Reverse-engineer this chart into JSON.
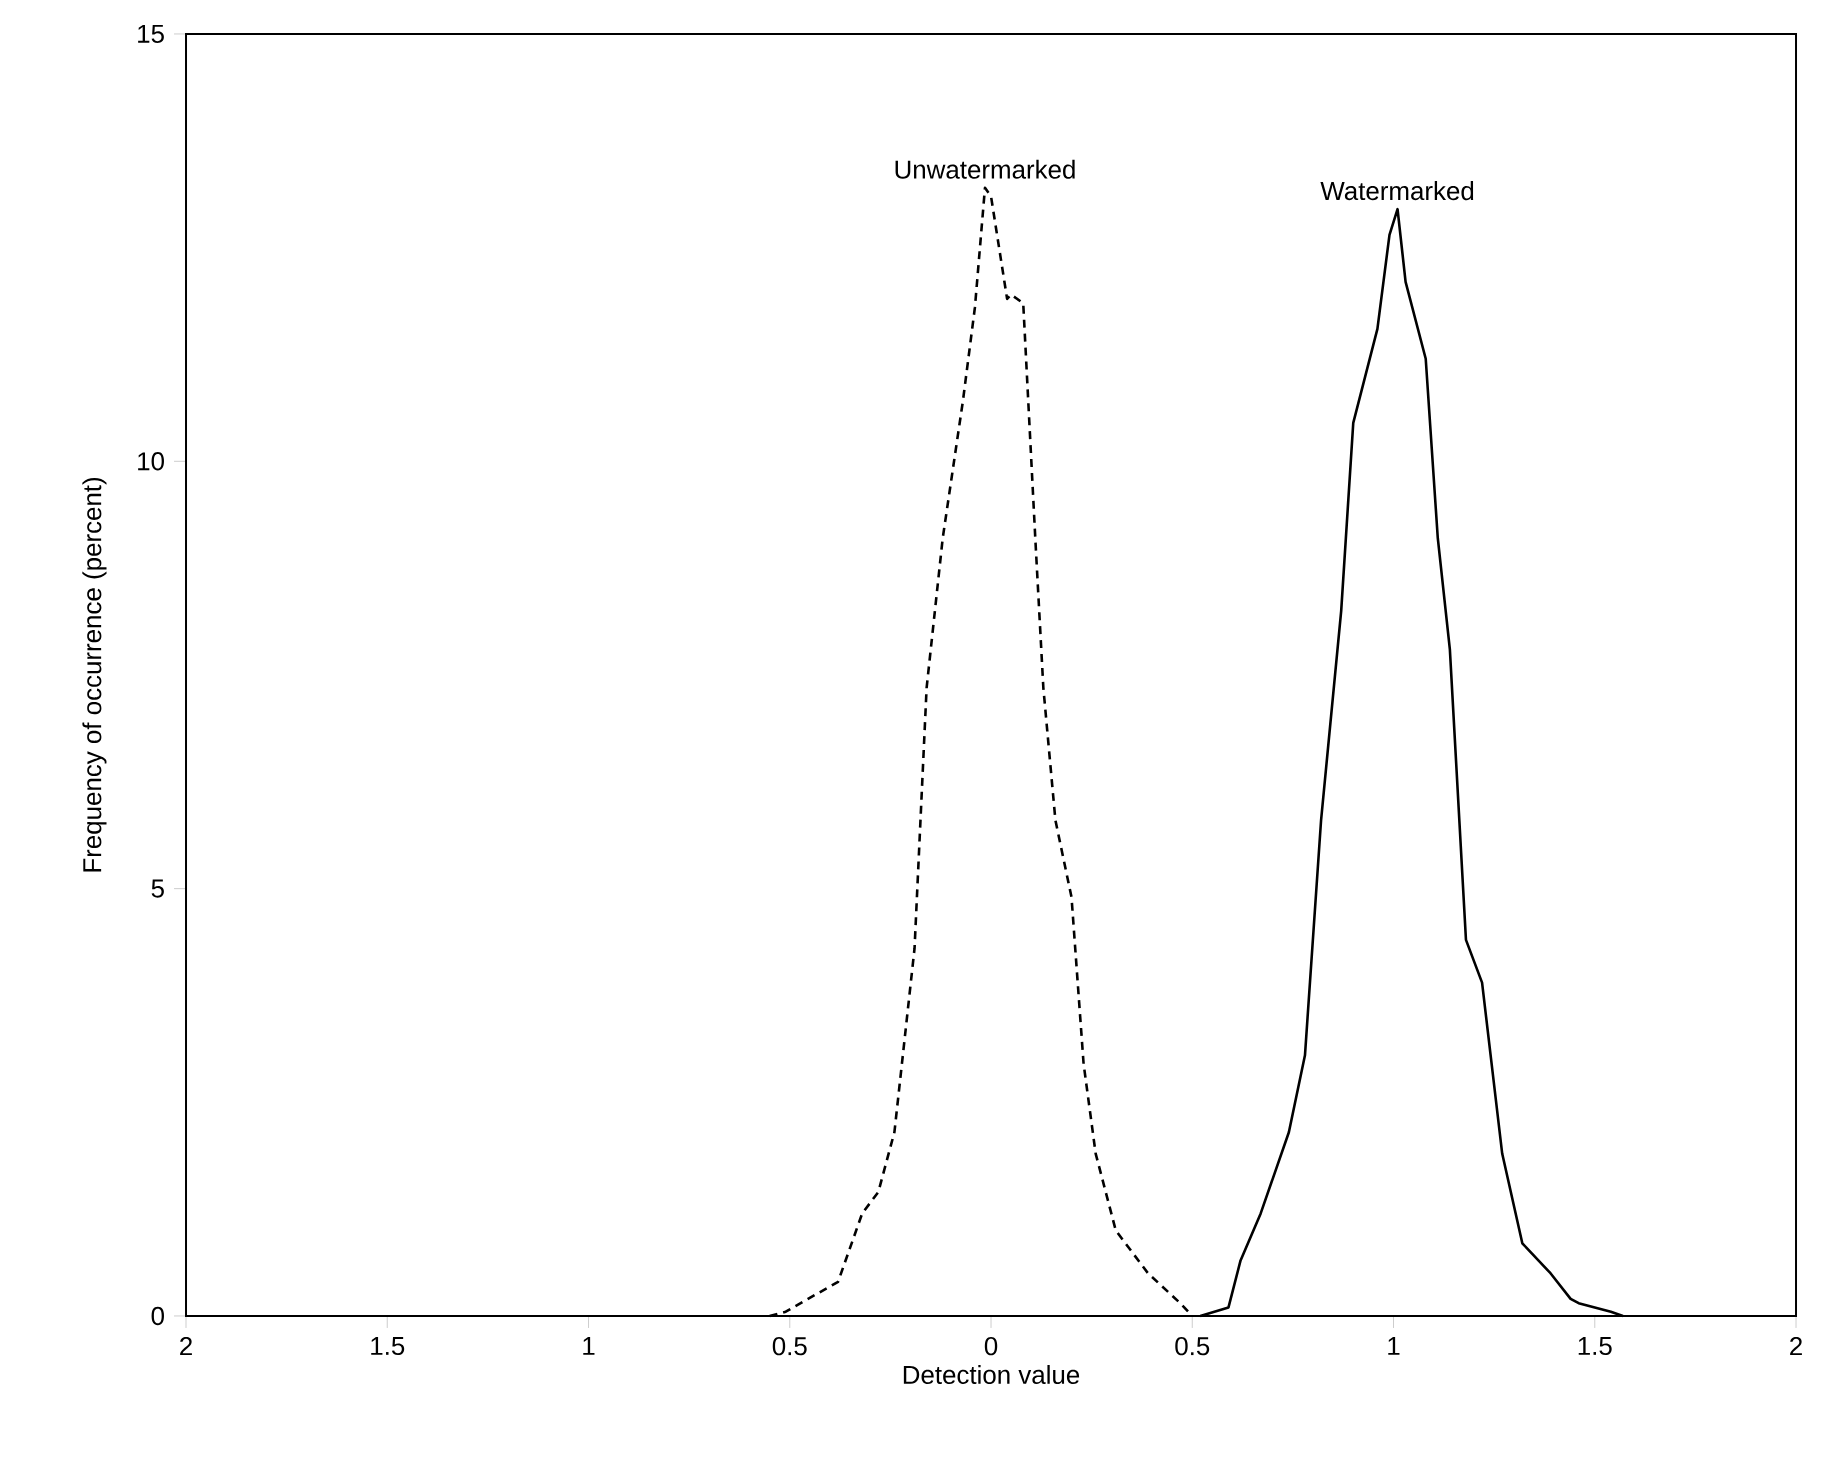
{
  "chart_data": {
    "type": "line",
    "xlabel": "Detection value",
    "ylabel": "Frequency of occurrence (percent)",
    "xlim": [
      -2,
      2
    ],
    "ylim": [
      0,
      15
    ],
    "xticks": [
      {
        "value": -2,
        "label": "2"
      },
      {
        "value": -1.5,
        "label": "1.5"
      },
      {
        "value": -1,
        "label": "1"
      },
      {
        "value": -0.5,
        "label": "0.5"
      },
      0,
      0.5,
      1,
      1.5,
      2
    ],
    "yticks": [
      0,
      5,
      10,
      15
    ],
    "grid": false,
    "marker": "none",
    "series": [
      {
        "name": "Unwatermarked",
        "color": "#000000",
        "line_style": "dashed",
        "x": [
          -0.55,
          -0.51,
          -0.38,
          -0.32,
          -0.28,
          -0.24,
          -0.19,
          -0.16,
          -0.12,
          -0.07,
          -0.04,
          -0.015,
          0.0,
          0.04,
          0.05,
          0.08,
          0.11,
          0.13,
          0.16,
          0.2,
          0.23,
          0.26,
          0.31,
          0.39,
          0.47,
          0.5
        ],
        "values": [
          0,
          0.05,
          0.4,
          1.2,
          1.45,
          2.15,
          4.3,
          7.35,
          9.1,
          10.7,
          11.8,
          13.2,
          13.1,
          11.9,
          11.95,
          11.85,
          9.1,
          7.35,
          5.8,
          4.9,
          2.95,
          1.9,
          1.0,
          0.5,
          0.15,
          0
        ]
      },
      {
        "name": "Watermarked",
        "color": "#000000",
        "line_style": "solid",
        "x": [
          0.52,
          0.59,
          0.62,
          0.67,
          0.74,
          0.78,
          0.82,
          0.87,
          0.9,
          0.96,
          0.99,
          1.01,
          1.03,
          1.08,
          1.11,
          1.14,
          1.18,
          1.22,
          1.27,
          1.32,
          1.39,
          1.44,
          1.46,
          1.54,
          1.57
        ],
        "values": [
          0,
          0.1,
          0.65,
          1.2,
          2.15,
          3.05,
          5.8,
          8.25,
          10.45,
          11.55,
          12.65,
          12.95,
          12.1,
          11.2,
          9.1,
          7.8,
          4.4,
          3.9,
          1.9,
          0.85,
          0.5,
          0.2,
          0.15,
          0.05,
          0
        ]
      }
    ]
  }
}
